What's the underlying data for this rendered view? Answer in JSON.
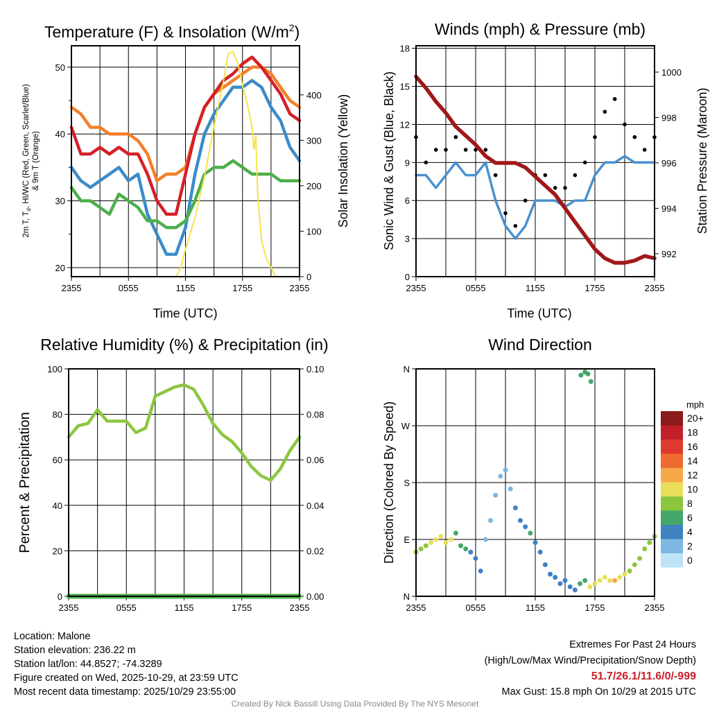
{
  "chart_data": [
    {
      "type": "line",
      "title": "Temperature (F) & Insolation (W/m²)",
      "xlabel": "Time (UTC)",
      "ylabel": "2m T, Td, HI/WC (Red, Green, Scarlet/Blue) & 9m T (Orange)",
      "ylabel_line1": "2m T, T",
      "ylabel_sub": "d",
      "ylabel_line1b": ", HI/WC (Red, Green, Scarlet/Blue)",
      "ylabel_line2": "& 9m T (Orange)",
      "y2label": "Solar Insolation (Yellow)",
      "xticks": [
        "2355",
        "0555",
        "1155",
        "1755",
        "2355"
      ],
      "yticks": [
        20,
        30,
        40,
        50
      ],
      "y2ticks": [
        0,
        100,
        200,
        300,
        400
      ],
      "ylim": [
        18.65,
        53.2
      ],
      "y2lim": [
        0,
        508
      ],
      "x_hours": [
        0,
        1,
        2,
        3,
        4,
        5,
        6,
        7,
        8,
        9,
        10,
        11,
        12,
        13,
        14,
        15,
        16,
        17,
        18,
        19,
        20,
        21,
        22,
        23,
        24
      ],
      "series": [
        {
          "name": "9m T",
          "color": "#F47F2A",
          "values": [
            44,
            43,
            41,
            41,
            40,
            40,
            40,
            39,
            37,
            33,
            34,
            34,
            35,
            40,
            44,
            46,
            47,
            48,
            49,
            50,
            50,
            49,
            47,
            45,
            44
          ]
        },
        {
          "name": "2m T",
          "color": "#D42027",
          "values": [
            41,
            37,
            37,
            38,
            37,
            38,
            37,
            37,
            34,
            30,
            28,
            28,
            34,
            40,
            44,
            46,
            48,
            49,
            50.5,
            51.5,
            50,
            48,
            46,
            43,
            42
          ]
        },
        {
          "name": "HI/WC",
          "color": "#3B8BC9",
          "values": [
            35,
            33,
            32,
            33,
            34,
            35,
            33,
            34,
            28,
            25,
            22,
            22,
            26,
            34,
            40,
            43,
            45,
            47,
            47,
            48,
            47,
            44,
            42,
            38,
            36
          ]
        },
        {
          "name": "Td",
          "color": "#4DAF4A",
          "values": [
            32,
            30,
            30,
            29,
            28,
            31,
            30,
            29,
            27,
            27,
            26,
            26,
            27,
            30,
            34,
            35,
            35,
            36,
            35,
            34,
            34,
            34,
            33,
            33,
            33
          ]
        }
      ],
      "insolation": {
        "name": "Solar Insolation",
        "color": "#F5E34A",
        "x_hours": [
          0,
          10.5,
          11,
          11.5,
          12,
          13,
          14,
          15,
          16,
          16.5,
          17,
          17.5,
          18,
          18.5,
          19,
          19.2,
          19.4,
          19.6,
          20,
          20.5,
          21,
          21.5,
          24
        ],
        "values": [
          0,
          0,
          0,
          20,
          60,
          130,
          220,
          330,
          430,
          490,
          495,
          470,
          420,
          380,
          330,
          280,
          310,
          180,
          80,
          40,
          20,
          0,
          0
        ]
      }
    },
    {
      "type": "line",
      "title": "Winds (mph) & Pressure (mb)",
      "xlabel": "Time (UTC)",
      "ylabel": "Sonic Wind & Gust (Blue, Black)",
      "y2label": "Station Pressure (Maroon)",
      "xticks": [
        "2355",
        "0555",
        "1155",
        "1755",
        "2355"
      ],
      "yticks": [
        0,
        3,
        6,
        9,
        12,
        15,
        18
      ],
      "y2ticks": [
        992,
        994,
        996,
        998,
        1000
      ],
      "ylim": [
        0,
        18.2
      ],
      "y2lim": [
        990.99,
        1001.16
      ],
      "x_hours": [
        0,
        1,
        2,
        3,
        4,
        5,
        6,
        7,
        8,
        9,
        10,
        11,
        12,
        13,
        14,
        15,
        16,
        17,
        18,
        19,
        20,
        21,
        22,
        23,
        24
      ],
      "wind": {
        "color": "#4A90CF",
        "values": [
          8,
          8,
          7,
          8,
          9,
          8,
          8,
          9,
          6,
          4,
          3,
          4,
          6,
          6,
          6,
          5.5,
          6,
          6,
          8,
          9,
          9,
          9.5,
          9,
          9,
          9
        ]
      },
      "gust": {
        "color": "#000000",
        "values": [
          11,
          9,
          10,
          10,
          11,
          10,
          10,
          10,
          8,
          5,
          4,
          6,
          8,
          8,
          7,
          7,
          8,
          9,
          11,
          13,
          14,
          12,
          11,
          10,
          11
        ]
      },
      "pressure": {
        "color": "#A01818",
        "values": [
          999.8,
          999.3,
          998.7,
          998.2,
          997.6,
          997.2,
          996.8,
          996.3,
          996.0,
          996.0,
          996.0,
          995.8,
          995.4,
          995.0,
          994.6,
          994.0,
          993.4,
          992.8,
          992.2,
          991.8,
          991.6,
          991.6,
          991.7,
          991.9,
          991.8
        ]
      }
    },
    {
      "type": "line",
      "title": "Relative Humidity (%) & Precipitation (in)",
      "ylabel": "Percent & Precipitation",
      "xticks": [
        "2355",
        "0555",
        "1155",
        "1755",
        "2355"
      ],
      "yticks": [
        0,
        20,
        40,
        60,
        80,
        100
      ],
      "y2ticks": [
        "0.00",
        "0.02",
        "0.04",
        "0.06",
        "0.08",
        "0.10"
      ],
      "ylim": [
        0,
        100
      ],
      "x_hours": [
        0,
        1,
        2,
        3,
        4,
        5,
        6,
        7,
        8,
        9,
        10,
        11,
        12,
        13,
        14,
        15,
        16,
        17,
        18,
        19,
        20,
        21,
        22,
        23,
        24
      ],
      "rh": {
        "color": "#8CC63F",
        "values": [
          70,
          75,
          76,
          82,
          77,
          77,
          77,
          72,
          74,
          88,
          90,
          92,
          93,
          91,
          84,
          76,
          71,
          68,
          63,
          57,
          53,
          51,
          56,
          64,
          70
        ]
      },
      "precip": {
        "color": "#4DAF4A",
        "values": [
          0,
          0,
          0,
          0,
          0,
          0,
          0,
          0,
          0,
          0,
          0,
          0,
          0,
          0,
          0,
          0,
          0,
          0,
          0,
          0,
          0,
          0,
          0,
          0,
          0
        ]
      }
    },
    {
      "type": "scatter",
      "title": "Wind Direction",
      "ylabel": "Direction (Colored By Speed)",
      "xticks": [
        "2355",
        "0555",
        "1155",
        "1755",
        "2355"
      ],
      "yticks": [
        "N",
        "E",
        "S",
        "W",
        "N"
      ],
      "ylim": [
        0,
        360
      ],
      "x_hours": [
        0,
        0.5,
        1,
        1.5,
        2,
        2.5,
        3,
        3.5,
        4,
        4.5,
        5,
        5.5,
        6,
        6.5,
        7,
        7.5,
        8,
        8.5,
        9,
        9.5,
        10,
        10.5,
        11,
        11.5,
        12,
        12.5,
        13,
        13.5,
        14,
        14.5,
        15,
        15.5,
        16,
        16.5,
        17,
        17.5,
        18,
        18.5,
        19,
        19.5,
        20,
        20.5,
        21,
        21.5,
        22,
        22.5,
        23,
        23.5,
        24,
        16.6,
        17,
        17.3,
        17.6
      ],
      "direction": [
        70,
        75,
        80,
        85,
        90,
        95,
        85,
        90,
        100,
        80,
        75,
        70,
        60,
        40,
        90,
        120,
        160,
        190,
        200,
        170,
        140,
        120,
        110,
        100,
        85,
        70,
        50,
        35,
        30,
        20,
        25,
        15,
        10,
        20,
        25,
        15,
        20,
        25,
        30,
        25,
        25,
        30,
        35,
        40,
        50,
        60,
        75,
        85,
        95,
        350,
        355,
        352,
        340
      ],
      "speed": [
        7,
        7,
        8,
        9,
        10,
        9,
        10,
        9,
        6,
        5,
        5,
        4,
        4,
        3,
        2,
        2,
        2,
        2,
        1,
        2,
        3,
        4,
        4,
        5,
        4,
        4,
        3,
        3,
        4,
        4,
        3,
        3,
        4,
        5,
        6,
        9,
        10,
        10,
        10,
        9,
        11,
        10,
        9,
        8,
        8,
        7,
        7,
        7,
        8,
        5,
        6,
        5,
        5
      ],
      "legend": {
        "title": "mph",
        "placement": "right",
        "labels": [
          "20+",
          "18",
          "16",
          "14",
          "12",
          "10",
          "8",
          "6",
          "4",
          "2",
          "0"
        ],
        "colors": [
          "#8B1A1A",
          "#C0202A",
          "#E03A2F",
          "#EF6A30",
          "#F6A848",
          "#E8DE5A",
          "#8CC63F",
          "#45A66A",
          "#3F82C2",
          "#7DB8E3",
          "#BDE4F7"
        ]
      }
    }
  ],
  "info": {
    "location": "Location: Malone",
    "elevation": "Station elevation: 236.22 m",
    "latlon": "Station lat/lon: 44.8527; -74.3289",
    "created": "Figure created on Wed, 2025-10-29, at 23:59 UTC",
    "recent": "Most recent data timestamp: 2025/10/29 23:55:00"
  },
  "extremes": {
    "heading": "Extremes For Past 24 Hours",
    "fields": "(High/Low/Max Wind/Precipitation/Snow Depth)",
    "values": "51.7/26.1/11.6/0/-999",
    "gust": "Max Gust: 15.8 mph On 10/29 at 2015 UTC"
  },
  "credit": "Created By Nick Bassill Using Data Provided By The NYS Mesonet"
}
